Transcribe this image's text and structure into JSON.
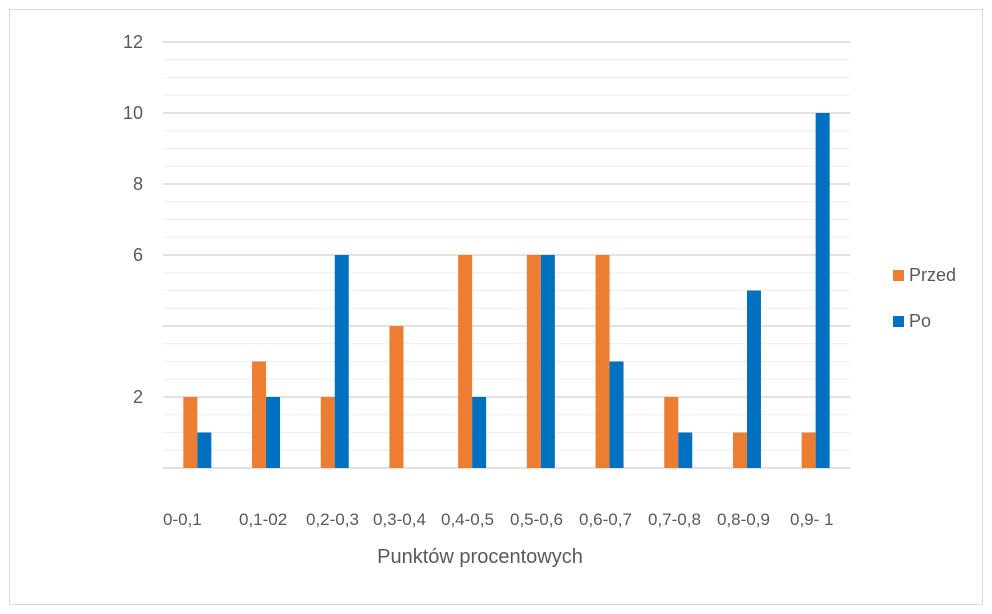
{
  "chart_data": {
    "type": "bar",
    "categories": [
      "0-0,1",
      "0,1-02",
      "0,2-0,3",
      "0,3-0,4",
      "0,4-0,5",
      "0,5-0,6",
      "0,6-0,7",
      "0,7-0,8",
      "0,8-0,9",
      "0,9- 1"
    ],
    "y_tick_labels": [
      "2",
      "6",
      "8",
      "10",
      "12"
    ],
    "ylim": [
      0,
      12
    ],
    "xlabel": "Punktów procentowych",
    "ylabel": "",
    "title": "",
    "grid": true,
    "legend_position": "right",
    "series": [
      {
        "name": "Przed",
        "color": "#ED7D31",
        "values": [
          2,
          3,
          2,
          4,
          6,
          6,
          6,
          2,
          1,
          1
        ]
      },
      {
        "name": "Po",
        "color": "#0070C0",
        "values": [
          1,
          2,
          6,
          0,
          2,
          6,
          3,
          1,
          5,
          10
        ]
      }
    ]
  }
}
